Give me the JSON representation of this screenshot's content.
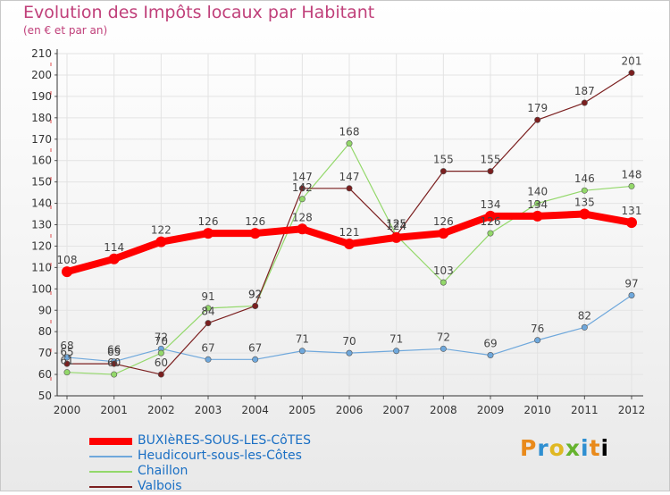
{
  "title": "Evolution des Impôts locaux par Habitant",
  "subtitle": "(en € et par an)",
  "logo_text": "Proxiti",
  "chart_data": {
    "type": "line",
    "title": "Evolution des Impôts locaux par Habitant",
    "subtitle": "(en € et par an)",
    "xlabel": "",
    "ylabel": "",
    "x": [
      "2000",
      "2001",
      "2002",
      "2003",
      "2004",
      "2005",
      "2006",
      "2007",
      "2008",
      "2009",
      "2010",
      "2011",
      "2012"
    ],
    "ylim": [
      50,
      210
    ],
    "yticks": [
      50,
      60,
      70,
      80,
      90,
      100,
      110,
      120,
      130,
      140,
      150,
      160,
      170,
      180,
      190,
      200,
      210
    ],
    "grid": true,
    "legend_position": "bottom-left",
    "series": [
      {
        "name": "BUXIèRES-SOUS-LES-CôTES",
        "color": "#ff0000",
        "values": [
          108,
          114,
          122,
          126,
          126,
          128,
          121,
          124,
          126,
          134,
          134,
          135,
          131
        ]
      },
      {
        "name": "Heudicourt-sous-les-Côtes",
        "color": "#6fa8dc",
        "values": [
          68,
          66,
          72,
          67,
          67,
          71,
          70,
          71,
          72,
          69,
          76,
          82,
          97
        ]
      },
      {
        "name": "Chaillon",
        "color": "#93d86a",
        "values": [
          61,
          60,
          70,
          91,
          92,
          142,
          168,
          125,
          103,
          126,
          140,
          146,
          148
        ]
      },
      {
        "name": "Valbois",
        "color": "#7b1f1f",
        "values": [
          65,
          65,
          60,
          84,
          92,
          147,
          147,
          125,
          155,
          155,
          179,
          187,
          201
        ]
      }
    ]
  }
}
